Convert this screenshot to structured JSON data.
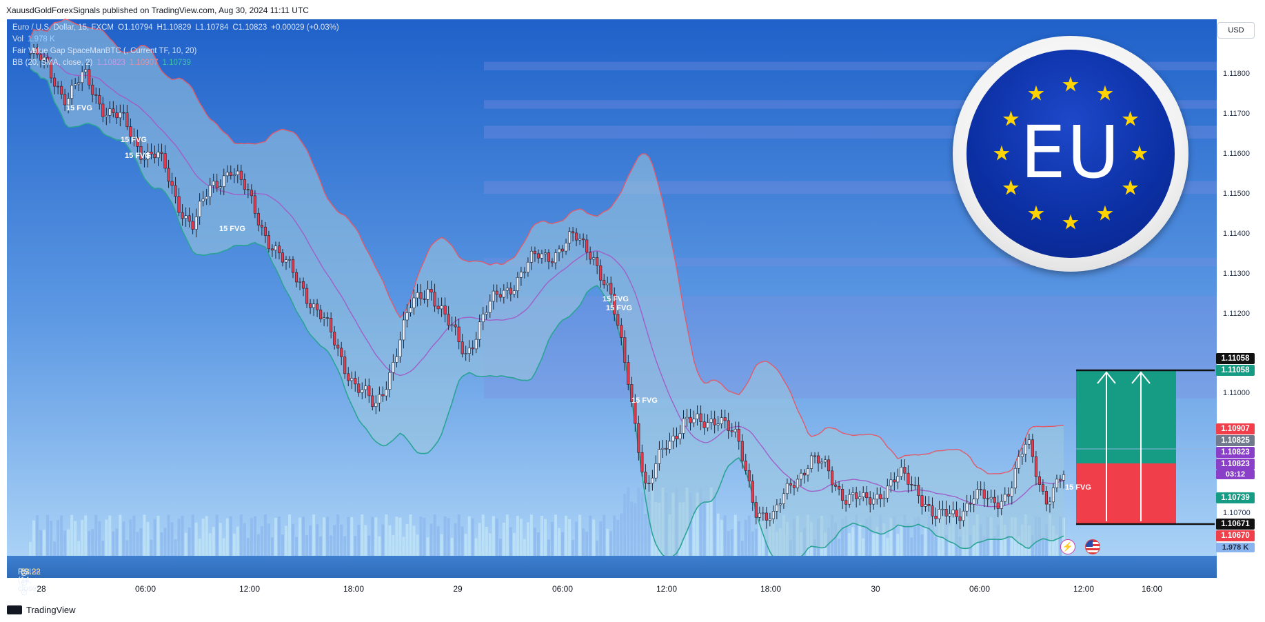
{
  "header": {
    "published": "XauusdGoldForexSignals published on TradingView.com, Aug 30, 2024 11:11 UTC"
  },
  "legend": {
    "symbol": "Euro / U.S. Dollar, 15, FXCM",
    "o": "O1.10794",
    "h": "H1.10829",
    "l": "L1.10784",
    "c": "C1.10823",
    "chg": "+0.00029 (+0.03%)",
    "vol_label": "Vol",
    "vol_value": "1.978 K",
    "fvg": "Fair Value Gap SpaceManBTC (, Current TF, 10, 20)",
    "bb_label": "BB (20, SMA, close, 2)",
    "bb_mid": "1.10823",
    "bb_up": "1.10907",
    "bb_low": "1.10739"
  },
  "currency_button": "USD",
  "rsi": {
    "label": "RSI (14, close)",
    "v1": "51.88",
    "v2": "53.22",
    "dots": "∅ ∅ ∅ ∅"
  },
  "brand": "TradingView",
  "price_axis": [
    "1.11800",
    "1.11700",
    "1.11600",
    "1.11500",
    "1.11400",
    "1.11300",
    "1.11200",
    "1.11000",
    "1.10700"
  ],
  "time_axis": [
    "28",
    "06:00",
    "12:00",
    "18:00",
    "29",
    "06:00",
    "12:00",
    "18:00",
    "30",
    "06:00",
    "12:00",
    "16:00"
  ],
  "price_tags": {
    "target_a": "1.11058",
    "target_b": "1.11058",
    "bb_upper": "1.10907",
    "gray": "1.10825",
    "bb_mid": "1.10823",
    "last": "1.10823",
    "countdown": "03:12",
    "bb_lower": "1.10739",
    "stop_a": "1.10671",
    "stop_b": "1.10670",
    "volume": "1.978 K"
  },
  "fvg_label": "15 FVG",
  "badge": {
    "text": "EU"
  },
  "colors": {
    "bull": "#e8eef8",
    "bear": "#e83a4a",
    "bb_upper": "#e05a6a",
    "bb_lower": "#2aa394",
    "bb_mid": "#a05fc8",
    "target": "#169c84",
    "stop": "#f03e4a"
  },
  "chart_data": {
    "type": "candlestick",
    "symbol": "EURUSD 15m",
    "y_range": [
      1.1064,
      1.119
    ],
    "close": [
      1.1182,
      1.1178,
      1.1172,
      1.1176,
      1.117,
      1.1166,
      1.116,
      1.1158,
      1.1148,
      1.1142,
      1.115,
      1.1156,
      1.1148,
      1.114,
      1.1132,
      1.1128,
      1.112,
      1.1112,
      1.1104,
      1.1098,
      1.111,
      1.1122,
      1.1128,
      1.1118,
      1.1112,
      1.112,
      1.1126,
      1.113,
      1.1134,
      1.1136,
      1.1138,
      1.1136,
      1.1124,
      1.1106,
      1.1078,
      1.109,
      1.1096,
      1.1094,
      1.1098,
      1.109,
      1.1076,
      1.1072,
      1.1082,
      1.1086,
      1.1084,
      1.1078,
      1.1076,
      1.108,
      1.1082,
      1.108,
      1.1072,
      1.1074,
      1.1078,
      1.1076,
      1.108,
      1.109,
      1.1078,
      1.1082
    ]
  }
}
